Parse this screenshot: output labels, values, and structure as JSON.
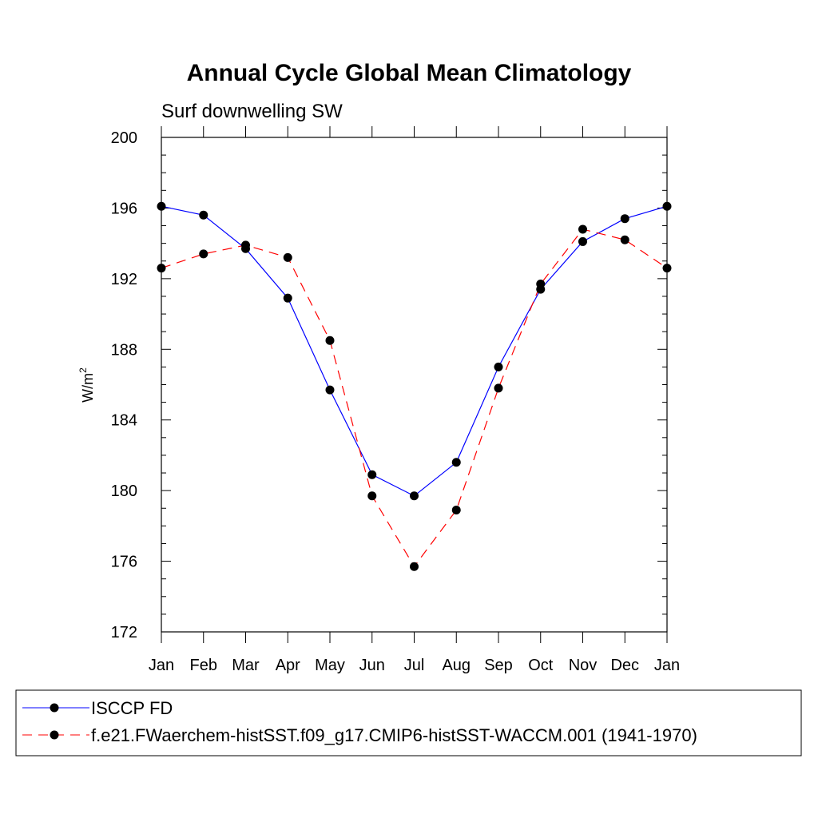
{
  "chart_data": {
    "type": "line",
    "title": "Annual Cycle Global Mean Climatology",
    "subtitle": "Surf downwelling SW",
    "xlabel": "",
    "ylabel": "W/m",
    "ylabel_superscript": "2",
    "ylim": [
      172,
      200
    ],
    "yticks": [
      "172",
      "176",
      "180",
      "184",
      "188",
      "192",
      "196",
      "200"
    ],
    "categories": [
      "Jan",
      "Feb",
      "Mar",
      "Apr",
      "May",
      "Jun",
      "Jul",
      "Aug",
      "Sep",
      "Oct",
      "Nov",
      "Dec",
      "Jan"
    ],
    "series": [
      {
        "name": "ISCCP FD",
        "color": "#0000ff",
        "line_style": "solid",
        "values": [
          196.1,
          195.6,
          193.7,
          190.9,
          185.7,
          180.9,
          179.7,
          181.6,
          187.0,
          191.4,
          194.1,
          195.4,
          196.1
        ]
      },
      {
        "name": "f.e21.FWaerchem-histSST.f09_g17.CMIP6-histSST-WACCM.001 (1941-1970)",
        "color": "#ff0000",
        "line_style": "dashed",
        "values": [
          192.6,
          193.4,
          193.9,
          193.2,
          188.5,
          179.7,
          175.7,
          178.9,
          185.8,
          191.7,
          194.8,
          194.2,
          192.6
        ]
      }
    ],
    "legend_position": "bottom"
  }
}
